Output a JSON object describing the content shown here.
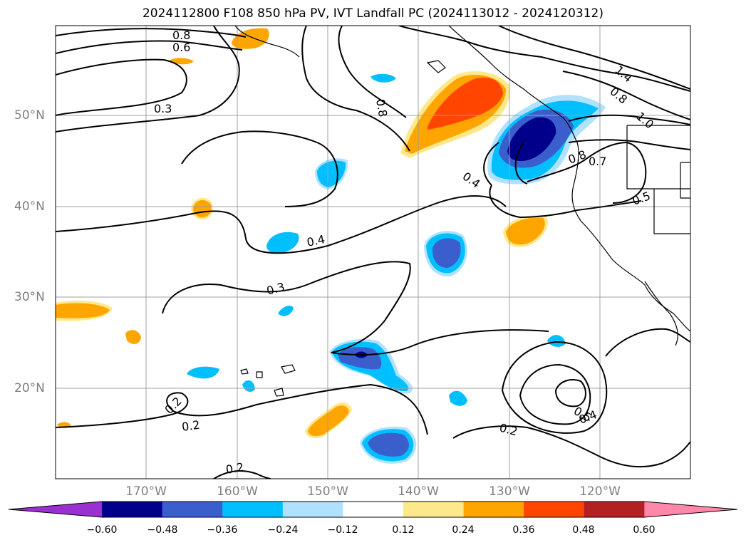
{
  "title": "2024112800 F108 850 hPa PV, IVT Landfall PC (2024113012 - 2024120312)",
  "map": {
    "lat_labels": [
      "50°N",
      "40°N",
      "30°N",
      "20°N"
    ],
    "lon_labels": [
      "170°W",
      "160°W",
      "150°W",
      "140°W",
      "130°W",
      "120°W"
    ],
    "contour_labels": [
      "0.8",
      "0.6",
      "0.3",
      "0.8",
      "1.4",
      "0.8",
      "1.0",
      "0.8",
      "0.7",
      "0.4",
      "0.5",
      "0.4",
      "0.3",
      "0.2",
      "0.2",
      "0.2",
      "0.5",
      "0.4",
      "0.2"
    ]
  },
  "colorbar": {
    "ticks": [
      "−0.60",
      "−0.48",
      "−0.36",
      "−0.24",
      "−0.12",
      "0.12",
      "0.24",
      "0.36",
      "0.48",
      "0.60"
    ],
    "colors": [
      "#9b30d0",
      "#00008b",
      "#3a5fcd",
      "#00bfff",
      "#b0e2ff",
      "#ffffff",
      "#ffe88a",
      "#ffa500",
      "#ff4500",
      "#b22222",
      "#ff88aa"
    ]
  },
  "colors": {
    "red": "#ff4500",
    "orange": "#ffa500",
    "yellow": "#ffe88a",
    "navy": "#00008b",
    "blue": "#3a5fcd",
    "cyan": "#00bfff",
    "lightblue": "#b0e2ff"
  }
}
